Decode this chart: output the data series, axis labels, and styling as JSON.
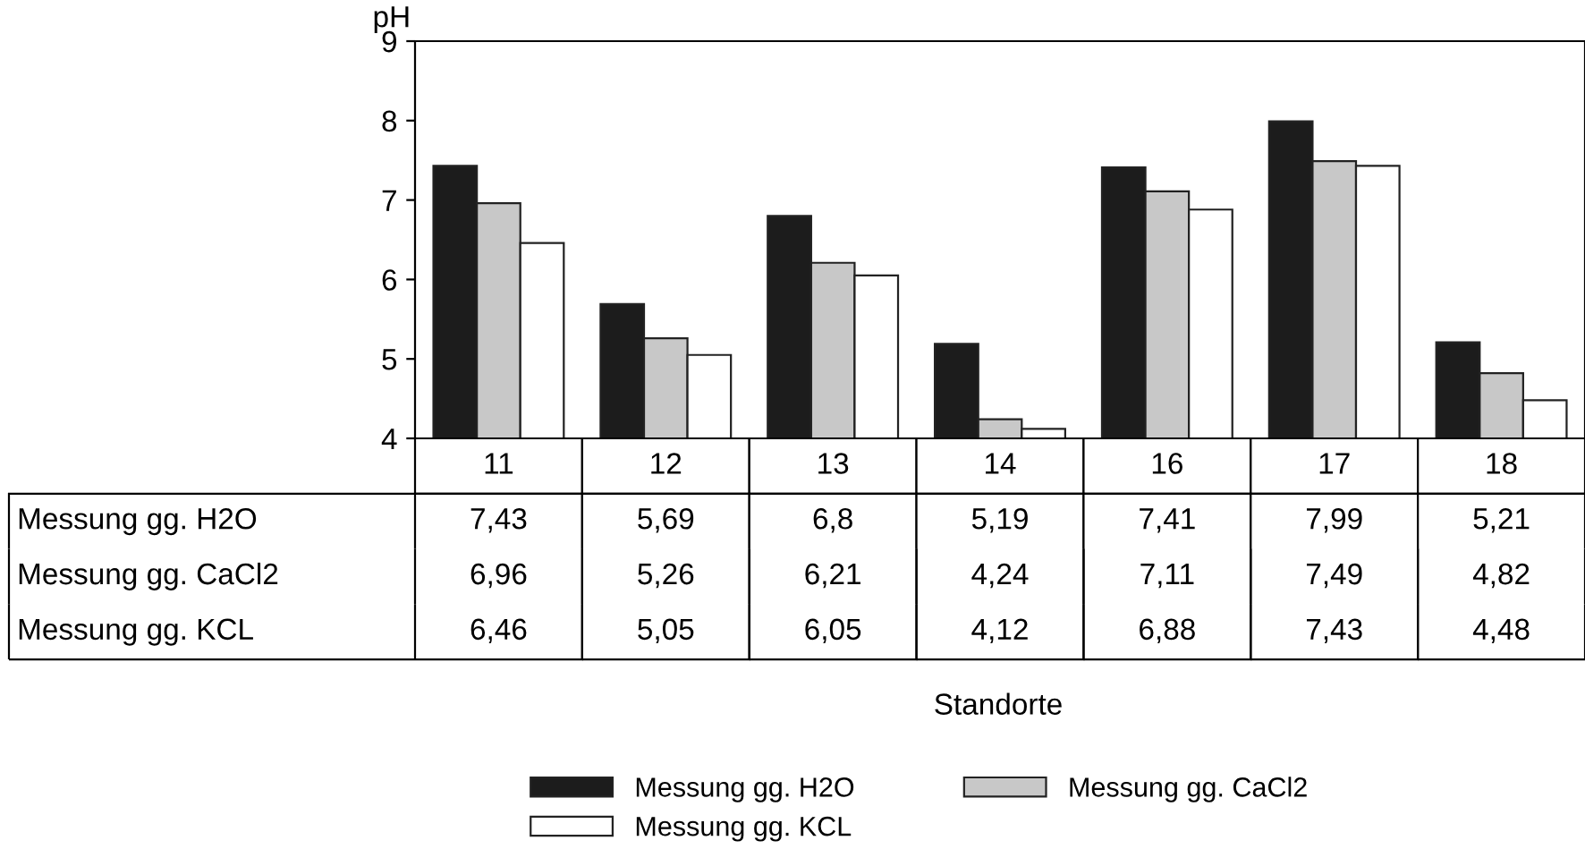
{
  "chart_data": {
    "type": "bar",
    "ylabel": "pH",
    "annotations": [
      "Standorte"
    ],
    "categories": [
      "11",
      "12",
      "13",
      "14",
      "16",
      "17",
      "18"
    ],
    "series": [
      {
        "name": "Messung gg. H2O",
        "color": "#1c1c1c",
        "values": [
          7.43,
          5.69,
          6.8,
          5.19,
          7.41,
          7.99,
          5.21
        ],
        "value_labels": [
          "7,43",
          "5,69",
          "6,8",
          "5,19",
          "7,41",
          "7,99",
          "5,21"
        ]
      },
      {
        "name": "Messung gg. CaCl2",
        "color": "#c8c8c8",
        "values": [
          6.96,
          5.26,
          6.21,
          4.24,
          7.11,
          7.49,
          4.82
        ],
        "value_labels": [
          "6,96",
          "5,26",
          "6,21",
          "4,24",
          "7,11",
          "7,49",
          "4,82"
        ]
      },
      {
        "name": "Messung gg. KCL",
        "color": "#ffffff",
        "values": [
          6.46,
          5.05,
          6.05,
          4.12,
          6.88,
          7.43,
          4.48
        ],
        "value_labels": [
          "6,46",
          "5,05",
          "6,05",
          "4,12",
          "6,88",
          "7,43",
          "4,48"
        ]
      }
    ],
    "ylim": [
      4,
      9
    ],
    "yticks": [
      4,
      5,
      6,
      7,
      8,
      9
    ],
    "grid": false,
    "legend": "bottom"
  }
}
